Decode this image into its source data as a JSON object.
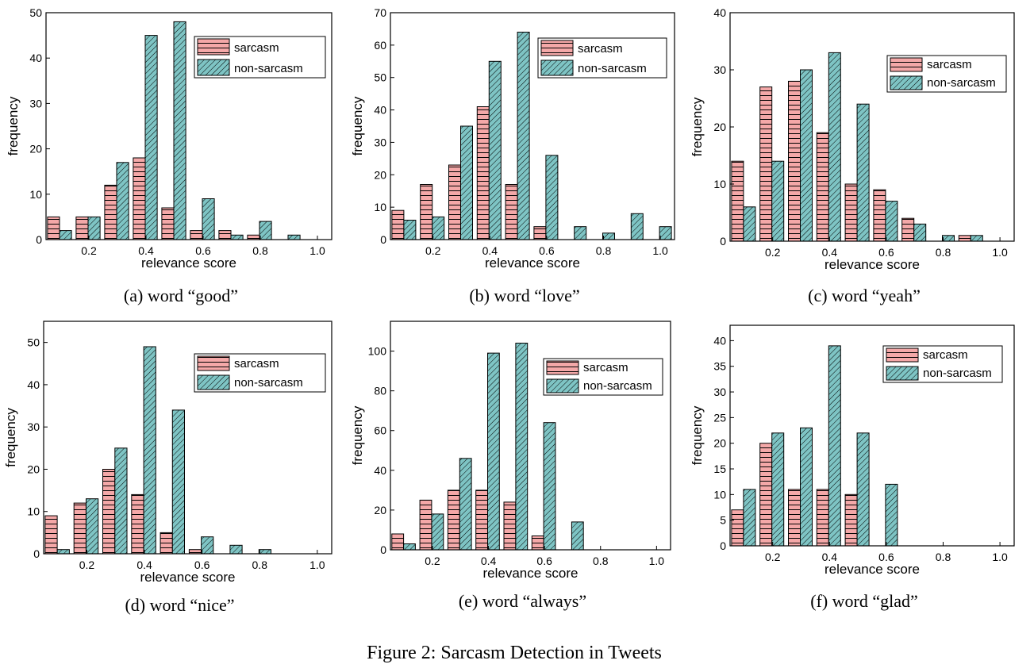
{
  "figure_caption": "Figure 2: Sarcasm Detection in Tweets",
  "colors": {
    "sarcasm": "#f4a8a8",
    "non_sarcasm": "#7ec4c4"
  },
  "chart_data": [
    {
      "type": "bar",
      "caption": "(a) word “good”",
      "xlabel": "relevance score",
      "ylabel": "frequency",
      "xlim": [
        0.05,
        1.05
      ],
      "ylim": [
        0,
        50
      ],
      "yticks": [
        0,
        10,
        20,
        30,
        40,
        50
      ],
      "xticks": [
        0.2,
        0.4,
        0.6,
        0.8,
        1.0
      ],
      "x": [
        0.1,
        0.2,
        0.3,
        0.4,
        0.5,
        0.6,
        0.7,
        0.8,
        0.9,
        1.0
      ],
      "series": [
        {
          "name": "sarcasm",
          "values": [
            5,
            5,
            12,
            18,
            7,
            2,
            2,
            1,
            0,
            0
          ]
        },
        {
          "name": "non-sarcasm",
          "values": [
            2,
            5,
            17,
            45,
            48,
            9,
            1,
            4,
            1,
            0
          ]
        }
      ],
      "legend": "top-right"
    },
    {
      "type": "bar",
      "caption": "(b) word “love”",
      "xlabel": "relevance score",
      "ylabel": "frequency",
      "xlim": [
        0.05,
        1.05
      ],
      "ylim": [
        0,
        70
      ],
      "yticks": [
        0,
        10,
        20,
        30,
        40,
        50,
        60,
        70
      ],
      "xticks": [
        0.2,
        0.4,
        0.6,
        0.8,
        1.0
      ],
      "x": [
        0.1,
        0.2,
        0.3,
        0.4,
        0.5,
        0.6,
        0.7,
        0.8,
        0.9,
        1.0
      ],
      "series": [
        {
          "name": "sarcasm",
          "values": [
            9,
            17,
            23,
            41,
            17,
            4,
            0,
            0,
            0,
            0
          ]
        },
        {
          "name": "non-sarcasm",
          "values": [
            6,
            7,
            35,
            55,
            64,
            26,
            4,
            2,
            8,
            4
          ]
        }
      ],
      "legend": "top-right"
    },
    {
      "type": "bar",
      "caption": "(c) word “yeah”",
      "xlabel": "relevance score",
      "ylabel": "frequency",
      "xlim": [
        0.05,
        1.05
      ],
      "ylim": [
        0,
        40
      ],
      "yticks": [
        0,
        10,
        20,
        30,
        40
      ],
      "xticks": [
        0.2,
        0.4,
        0.6,
        0.8,
        1.0
      ],
      "x": [
        0.1,
        0.2,
        0.3,
        0.4,
        0.5,
        0.6,
        0.7,
        0.8,
        0.9,
        1.0
      ],
      "series": [
        {
          "name": "sarcasm",
          "values": [
            14,
            27,
            28,
            19,
            10,
            9,
            4,
            0,
            1,
            0
          ]
        },
        {
          "name": "non-sarcasm",
          "values": [
            6,
            14,
            30,
            33,
            24,
            7,
            3,
            1,
            1,
            0
          ]
        }
      ],
      "legend": "top-right"
    },
    {
      "type": "bar",
      "caption": "(d) word “nice”",
      "xlabel": "relevance score",
      "ylabel": "frequency",
      "xlim": [
        0.05,
        1.05
      ],
      "ylim": [
        0,
        55
      ],
      "yticks": [
        0,
        10,
        20,
        30,
        40,
        50
      ],
      "xticks": [
        0.2,
        0.4,
        0.6,
        0.8,
        1.0
      ],
      "x": [
        0.1,
        0.2,
        0.3,
        0.4,
        0.5,
        0.6,
        0.7,
        0.8,
        0.9,
        1.0
      ],
      "series": [
        {
          "name": "sarcasm",
          "values": [
            9,
            12,
            20,
            14,
            5,
            1,
            0,
            0,
            0,
            0
          ]
        },
        {
          "name": "non-sarcasm",
          "values": [
            1,
            13,
            25,
            49,
            34,
            4,
            2,
            1,
            0,
            0
          ]
        }
      ],
      "legend": "top-right"
    },
    {
      "type": "bar",
      "caption": "(e) word “always”",
      "xlabel": "relevance score",
      "ylabel": "frequency",
      "xlim": [
        0.05,
        1.05
      ],
      "ylim": [
        0,
        115
      ],
      "yticks": [
        0,
        20,
        40,
        60,
        80,
        100
      ],
      "xticks": [
        0.2,
        0.4,
        0.6,
        0.8,
        1.0
      ],
      "x": [
        0.1,
        0.2,
        0.3,
        0.4,
        0.5,
        0.6,
        0.7,
        0.8,
        0.9,
        1.0
      ],
      "series": [
        {
          "name": "sarcasm",
          "values": [
            8,
            25,
            30,
            30,
            24,
            7,
            0,
            0,
            0,
            0
          ]
        },
        {
          "name": "non-sarcasm",
          "values": [
            3,
            18,
            46,
            99,
            104,
            64,
            14,
            0,
            0,
            0
          ]
        }
      ],
      "legend": "top-right"
    },
    {
      "type": "bar",
      "caption": "(f) word “glad”",
      "xlabel": "relevance score",
      "ylabel": "frequency",
      "xlim": [
        0.05,
        1.05
      ],
      "ylim": [
        0,
        43
      ],
      "yticks": [
        0,
        5,
        10,
        15,
        20,
        25,
        30,
        35,
        40
      ],
      "xticks": [
        0.2,
        0.4,
        0.6,
        0.8,
        1.0
      ],
      "x": [
        0.1,
        0.2,
        0.3,
        0.4,
        0.5,
        0.6,
        0.7,
        0.8,
        0.9,
        1.0
      ],
      "series": [
        {
          "name": "sarcasm",
          "values": [
            7,
            20,
            11,
            11,
            10,
            0,
            0,
            0,
            0,
            0
          ]
        },
        {
          "name": "non-sarcasm",
          "values": [
            11,
            22,
            23,
            39,
            22,
            12,
            0,
            0,
            0,
            0
          ]
        }
      ],
      "legend": "top-right"
    }
  ]
}
